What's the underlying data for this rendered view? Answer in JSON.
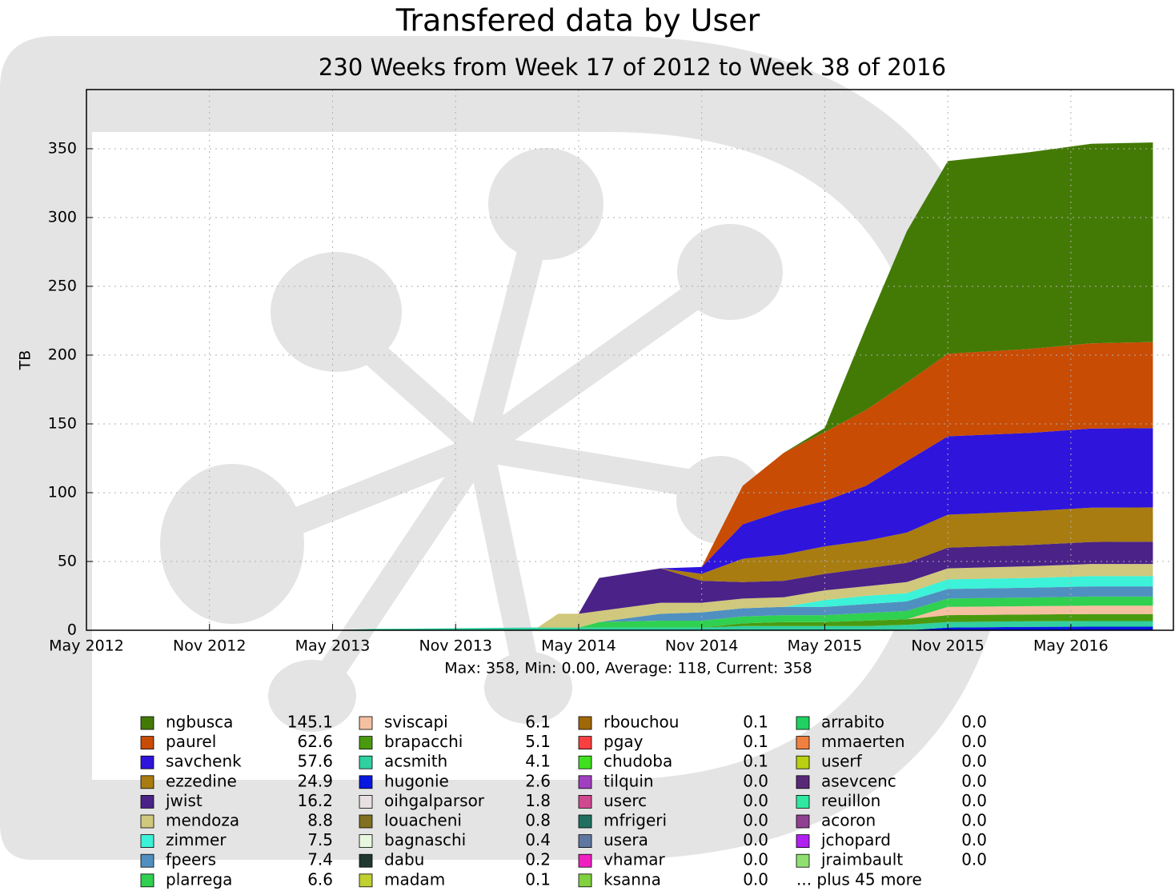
{
  "chart_data": {
    "type": "stacked_area",
    "title": "Transfered data by User",
    "subtitle": "230 Weeks from Week 17 of 2012 to Week 38 of 2016",
    "y_label": "TB",
    "stats": "Max: 358, Min: 0.00, Average: 118, Current: 358",
    "x": [
      "2012-05",
      "2013-05",
      "2013-07",
      "2014-03",
      "2014-04",
      "2014-05",
      "2014-06",
      "2014-09",
      "2014-11",
      "2015-01",
      "2015-03",
      "2015-05",
      "2015-07",
      "2015-09",
      "2015-11",
      "2016-03",
      "2016-06",
      "2016-09"
    ],
    "xlim": [
      "2012-05",
      "2016-10"
    ],
    "xticks": [
      {
        "value": "2012-05",
        "label": "May 2012"
      },
      {
        "value": "2012-11",
        "label": "Nov 2012"
      },
      {
        "value": "2013-05",
        "label": "May 2013"
      },
      {
        "value": "2013-11",
        "label": "Nov 2013"
      },
      {
        "value": "2014-05",
        "label": "May 2014"
      },
      {
        "value": "2014-11",
        "label": "Nov 2014"
      },
      {
        "value": "2015-05",
        "label": "May 2015"
      },
      {
        "value": "2015-11",
        "label": "Nov 2015"
      },
      {
        "value": "2016-05",
        "label": "May 2016"
      }
    ],
    "ylim": [
      0,
      393
    ],
    "yticks": [
      0,
      50,
      100,
      150,
      200,
      250,
      300,
      350
    ],
    "grid": true,
    "series": [
      {
        "name": "ngbusca",
        "color": "#437a06",
        "total": 145.1,
        "values": [
          0,
          0,
          0,
          0,
          0,
          0,
          0,
          0,
          0,
          0,
          0,
          3,
          60,
          110,
          140,
          143,
          145,
          145.1
        ]
      },
      {
        "name": "paurel",
        "color": "#c84c04",
        "total": 62.6,
        "values": [
          0,
          0,
          0,
          0,
          0,
          0,
          0,
          0,
          0,
          28,
          42,
          50,
          55,
          57,
          60,
          61,
          62,
          62.6
        ]
      },
      {
        "name": "savchenk",
        "color": "#2f14dc",
        "total": 57.6,
        "values": [
          0,
          0,
          0,
          0,
          0,
          0,
          0,
          0,
          5,
          25,
          32,
          33,
          40,
          52,
          57,
          57,
          57.5,
          57.6
        ]
      },
      {
        "name": "ezzedine",
        "color": "#a87c10",
        "total": 24.9,
        "values": [
          0,
          0,
          0,
          0,
          0,
          0,
          0,
          0,
          5,
          17,
          19,
          20,
          20,
          22,
          24,
          24.5,
          24.9,
          24.9
        ]
      },
      {
        "name": "jwist",
        "color": "#4a2288",
        "total": 16.2,
        "values": [
          0,
          0,
          0,
          0,
          0,
          0,
          24,
          25,
          16,
          12,
          12,
          12,
          13,
          14,
          15,
          15.5,
          16,
          16.2
        ]
      },
      {
        "name": "mendoza",
        "color": "#d0c87c",
        "total": 8.8,
        "values": [
          0,
          0,
          0,
          0,
          10,
          10,
          8,
          8,
          7,
          7,
          7,
          7,
          7,
          8,
          8,
          8.5,
          8.8,
          8.8
        ]
      },
      {
        "name": "zimmer",
        "color": "#3cf2d8",
        "total": 7.5,
        "values": [
          0,
          0,
          0,
          0,
          0,
          0,
          0,
          0,
          0,
          0,
          0,
          5,
          6,
          6,
          7,
          7,
          7.5,
          7.5
        ]
      },
      {
        "name": "fpeers",
        "color": "#5090c0",
        "total": 7.4,
        "values": [
          0,
          0,
          0,
          0,
          0,
          0,
          0,
          5,
          6,
          6,
          6,
          6,
          6.5,
          7,
          7,
          7.2,
          7.4,
          7.4
        ]
      },
      {
        "name": "plarrega",
        "color": "#30d050",
        "total": 6.6,
        "values": [
          0,
          0,
          0,
          0,
          0,
          0,
          4,
          5,
          5,
          5,
          5,
          5,
          5.5,
          6,
          6,
          6.3,
          6.6,
          6.6
        ]
      },
      {
        "name": "sviscapi",
        "color": "#f4c0a0",
        "total": 6.1,
        "values": [
          0,
          0,
          0,
          0,
          0,
          0,
          0,
          0,
          0,
          0,
          0,
          0,
          0,
          0,
          6,
          6,
          6.1,
          6.1
        ]
      },
      {
        "name": "brapacchi",
        "color": "#4a9a10",
        "total": 5.1,
        "values": [
          0,
          0,
          0,
          0,
          0,
          0,
          0,
          0,
          0,
          2,
          3,
          3,
          4,
          4,
          5,
          5,
          5.1,
          5.1
        ]
      },
      {
        "name": "acsmith",
        "color": "#30d0a0",
        "total": 4.1,
        "values": [
          0,
          0,
          1,
          2,
          2,
          2,
          2,
          2,
          2,
          3,
          3,
          3,
          3,
          4,
          4,
          4,
          4.1,
          4.1
        ]
      },
      {
        "name": "hugonie",
        "color": "#0818e0",
        "total": 2.6,
        "values": [
          0,
          0,
          0,
          0,
          0,
          0,
          0,
          0,
          0,
          0,
          0,
          0,
          0,
          0,
          2,
          2.5,
          2.6,
          2.6
        ]
      }
    ],
    "legend_extra": [
      {
        "name": "oihgalparsor",
        "color": "#e8e0e0",
        "total": 1.8
      },
      {
        "name": "louacheni",
        "color": "#807020",
        "total": 0.8
      },
      {
        "name": "bagnaschi",
        "color": "#e8f8e0",
        "total": 0.4
      },
      {
        "name": "dabu",
        "color": "#203830",
        "total": 0.2
      },
      {
        "name": "madam",
        "color": "#c0d030",
        "total": 0.1
      },
      {
        "name": "rbouchou",
        "color": "#a06808",
        "total": 0.1
      },
      {
        "name": "pgay",
        "color": "#f84040",
        "total": 0.1
      },
      {
        "name": "chudoba",
        "color": "#40e020",
        "total": 0.1
      },
      {
        "name": "tilquin",
        "color": "#a040c0",
        "total": 0,
        "total_label": "0.0"
      },
      {
        "name": "userc",
        "color": "#d04890",
        "total": 0,
        "total_label": "0.0"
      },
      {
        "name": "mfrigeri",
        "color": "#207060",
        "total": 0,
        "total_label": "0.0"
      },
      {
        "name": "usera",
        "color": "#6078a0",
        "total": 0,
        "total_label": "0.0"
      },
      {
        "name": "vhamar",
        "color": "#f020c0",
        "total": 0,
        "total_label": "0.0"
      },
      {
        "name": "ksanna",
        "color": "#80d040",
        "total": 0,
        "total_label": "0.0"
      },
      {
        "name": "arrabito",
        "color": "#20d060",
        "total": 0,
        "total_label": "0.0"
      },
      {
        "name": "mmaerten",
        "color": "#f08040",
        "total": 0,
        "total_label": "0.0"
      },
      {
        "name": "userf",
        "color": "#b8d010",
        "total": 0,
        "total_label": "0.0"
      },
      {
        "name": "asevcenc",
        "color": "#582878",
        "total": 0,
        "total_label": "0.0"
      },
      {
        "name": "reuillon",
        "color": "#30e8a0",
        "total": 0,
        "total_label": "0.0"
      },
      {
        "name": "acoron",
        "color": "#904090",
        "total": 0,
        "total_label": "0.0"
      },
      {
        "name": "jchopard",
        "color": "#b020f0",
        "total": 0,
        "total_label": "0.0"
      },
      {
        "name": "jraimbault",
        "color": "#90e070",
        "total": 0,
        "total_label": "0.0"
      }
    ],
    "legend_more": "... plus 45 more"
  }
}
